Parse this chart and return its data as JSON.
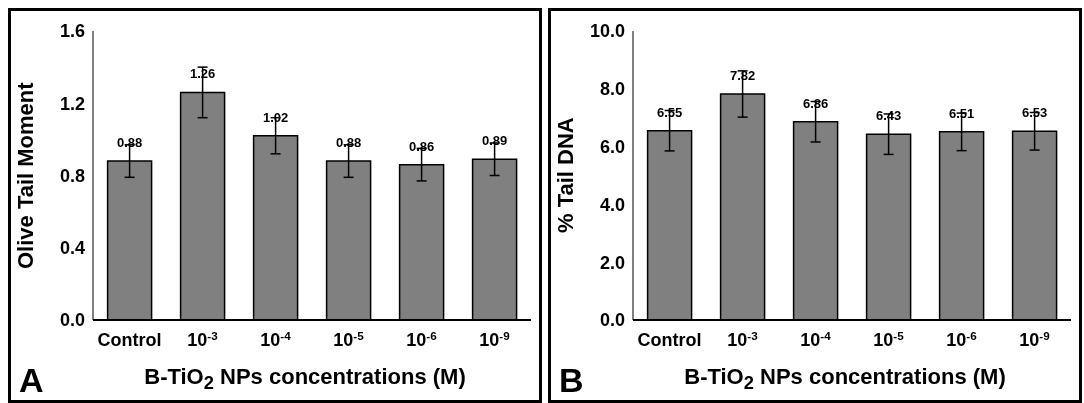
{
  "chart_data": [
    {
      "type": "bar",
      "ylabel": "Olive Tail Moment",
      "xlabel": "B-TiO$_{2}$ NPs concentrations (M)",
      "annotations": [
        "A"
      ],
      "categories": [
        "Control",
        "10$^{-3}$",
        "10$^{-4}$",
        "10$^{-5}$",
        "10$^{-6}$",
        "10$^{-9}$"
      ],
      "values": [
        0.88,
        1.26,
        1.02,
        0.88,
        0.86,
        0.89
      ],
      "errors": [
        0.09,
        0.14,
        0.1,
        0.09,
        0.09,
        0.09
      ],
      "color": "#808080",
      "ylim": [
        0,
        1.6
      ],
      "yticks": [
        {
          "value": 0,
          "label": "0.0"
        },
        0.4,
        0.8,
        1.2,
        1.6
      ],
      "data_labels": true,
      "grid": false,
      "legend": false
    },
    {
      "type": "bar",
      "ylabel": "% Tail DNA",
      "xlabel": "B-TiO$_{2}$ NPs concentrations (M)",
      "annotations": [
        "B"
      ],
      "categories": [
        "Control",
        "10$^{-3}$",
        "10$^{-4}$",
        "10$^{-5}$",
        "10$^{-6}$",
        "10$^{-9}$"
      ],
      "values": [
        6.55,
        7.82,
        6.86,
        6.43,
        6.51,
        6.53
      ],
      "errors": [
        0.7,
        0.8,
        0.7,
        0.7,
        0.65,
        0.65
      ],
      "color": "#808080",
      "ylim": [
        0,
        10
      ],
      "yticks": [
        {
          "value": 0,
          "label": "0.0"
        },
        {
          "value": 2,
          "label": "2.0"
        },
        {
          "value": 4,
          "label": "4.0"
        },
        {
          "value": 6,
          "label": "6.0"
        },
        {
          "value": 8,
          "label": "8.0"
        },
        {
          "value": 10,
          "label": "10.0"
        }
      ],
      "data_labels": true,
      "grid": false,
      "legend": false
    }
  ]
}
